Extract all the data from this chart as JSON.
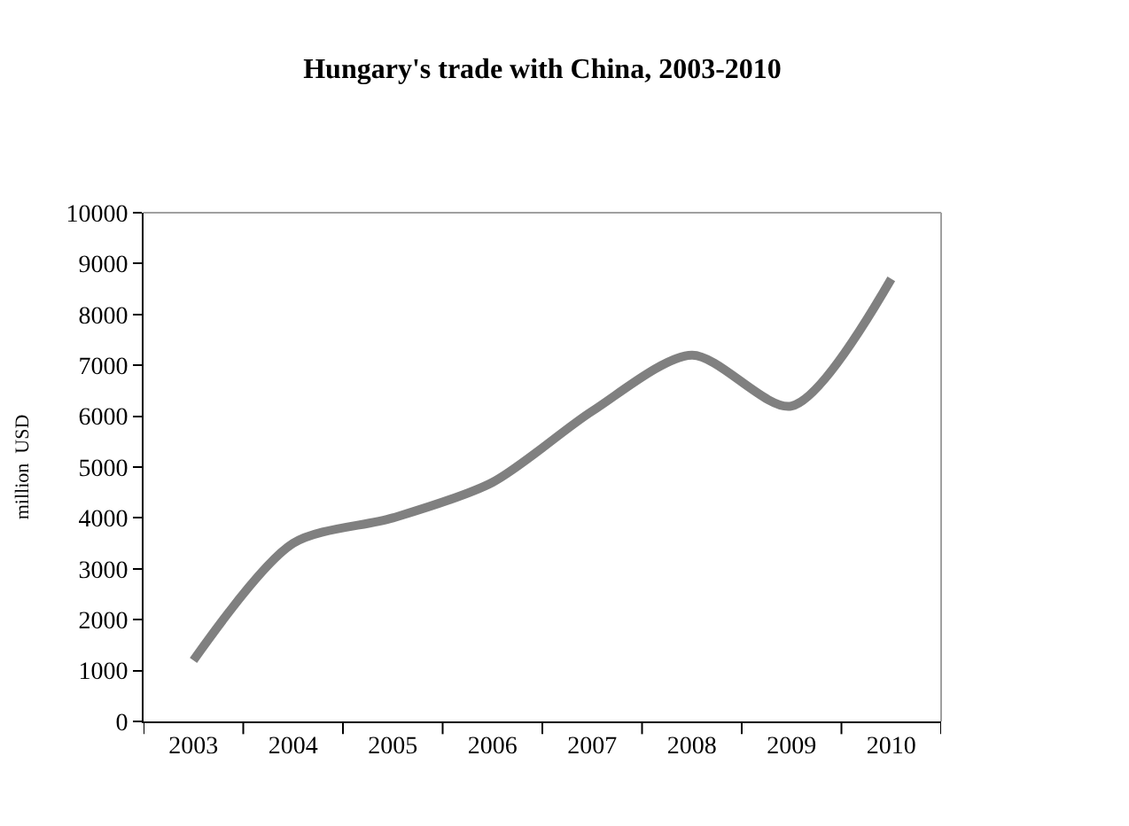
{
  "chart_data": {
    "type": "line",
    "title": "Hungary's trade with China, 2003-2010",
    "ylabel": "million  USD",
    "categories": [
      "2003",
      "2004",
      "2005",
      "2006",
      "2007",
      "2008",
      "2009",
      "2010"
    ],
    "series": [
      {
        "color": "#808080",
        "values": [
          1200,
          3500,
          4000,
          4700,
          6100,
          7200,
          6200,
          8700
        ]
      }
    ],
    "ylim": [
      0,
      10000
    ],
    "yticks": [
      0,
      1000,
      2000,
      3000,
      4000,
      5000,
      6000,
      7000,
      8000,
      9000,
      10000
    ],
    "marker": "none",
    "line_style": "solid"
  }
}
